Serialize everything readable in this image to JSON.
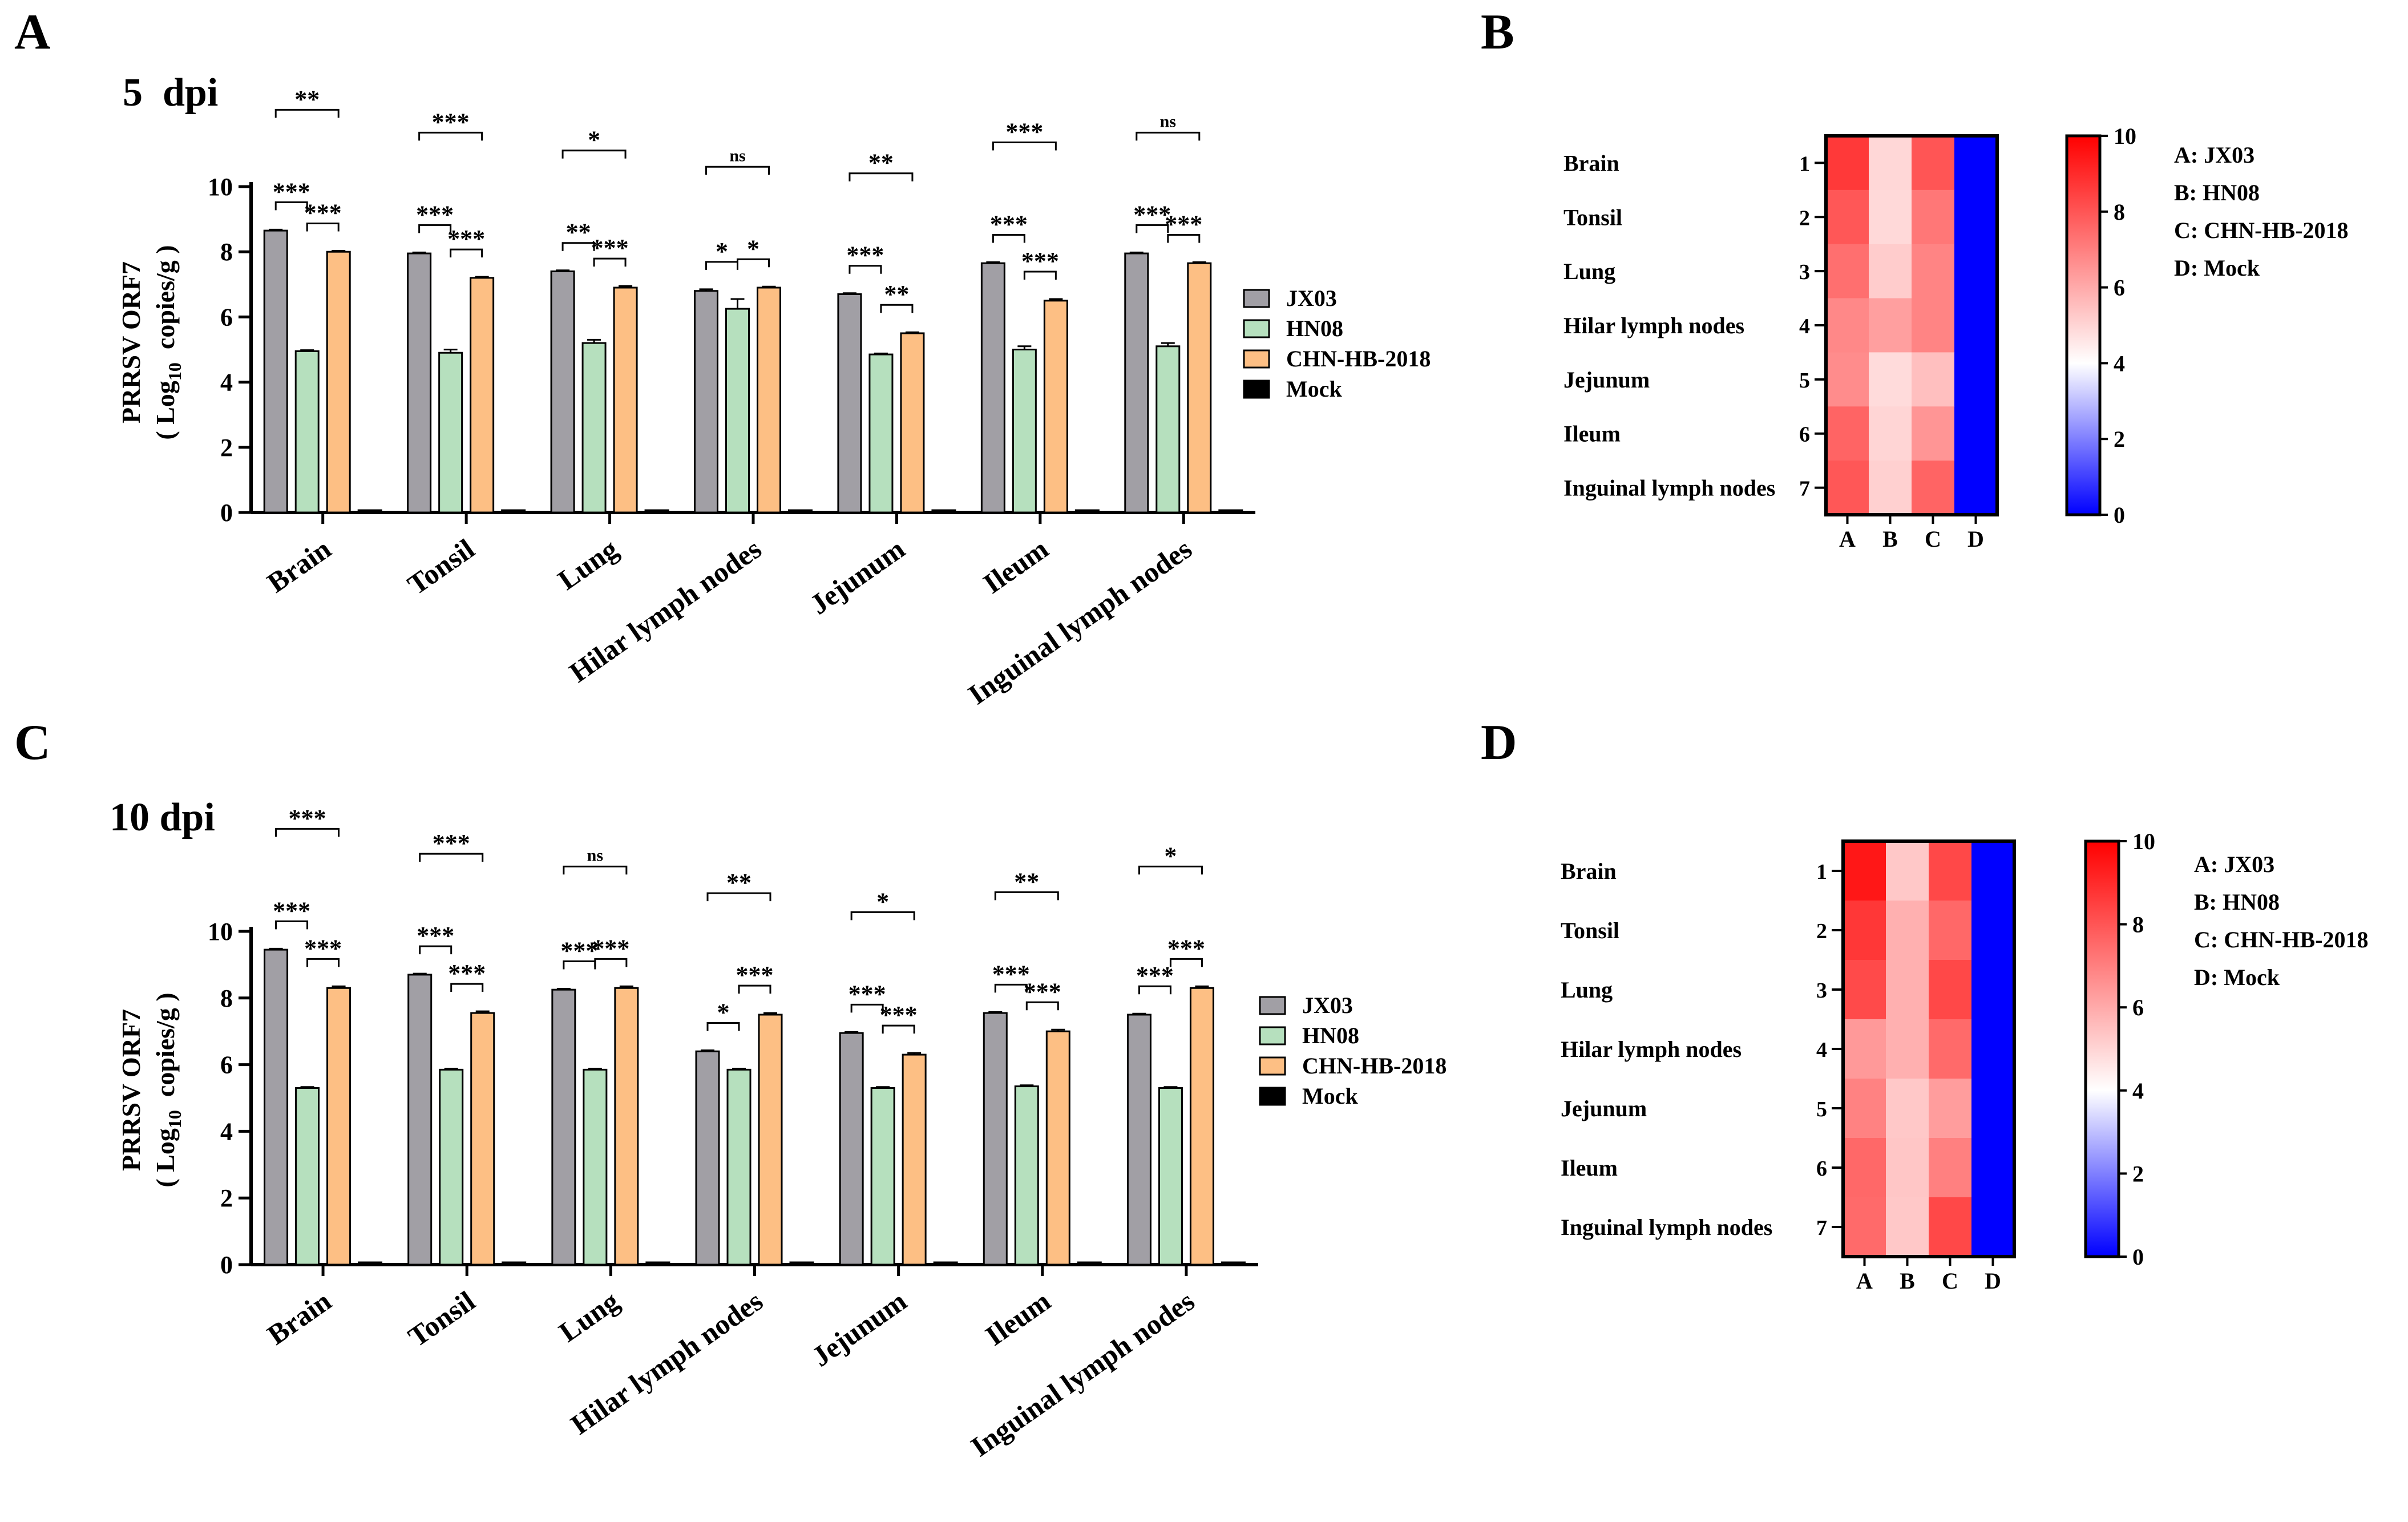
{
  "chart_data": [
    {
      "type": "bar",
      "panel_letter": "A",
      "title": "5  dpi",
      "ylabel_main": "PRRSV ORF7",
      "ylabel_pre": "( Log",
      "ylabel_sub": "10",
      "ylabel_post": "  copies/g )",
      "ylim": [
        0,
        10
      ],
      "yticks": [
        "0",
        "2",
        "4",
        "6",
        "8",
        "10"
      ],
      "categories": [
        "Brain",
        "Tonsil",
        "Lung",
        "Hilar lymph nodes",
        "Jejunum",
        "Ileum",
        "Inguinal lymph nodes"
      ],
      "series": [
        {
          "name": "JX03",
          "values": [
            8.65,
            7.95,
            7.4,
            6.8,
            6.7,
            7.65,
            7.95
          ],
          "errors": [
            0.03,
            0.03,
            0.03,
            0.05,
            0.03,
            0.03,
            0.03
          ]
        },
        {
          "name": "HN08",
          "values": [
            4.95,
            4.9,
            5.2,
            6.25,
            4.85,
            5.0,
            5.1
          ],
          "errors": [
            0.03,
            0.1,
            0.1,
            0.3,
            0.03,
            0.1,
            0.1
          ]
        },
        {
          "name": "CHN-HB-2018",
          "values": [
            8.0,
            7.2,
            6.9,
            6.9,
            5.5,
            6.5,
            7.65
          ],
          "errors": [
            0.03,
            0.03,
            0.05,
            0.03,
            0.03,
            0.05,
            0.03
          ]
        },
        {
          "name": "Mock",
          "values": [
            0,
            0,
            0,
            0,
            0,
            0,
            0
          ],
          "errors": [
            0,
            0,
            0,
            0,
            0,
            0,
            0
          ]
        }
      ],
      "significance": [
        {
          "top": "**",
          "left": "***",
          "right": "***"
        },
        {
          "top": "***",
          "left": "***",
          "right": "***"
        },
        {
          "top": "*",
          "left": "**",
          "right": "***"
        },
        {
          "top": "ns",
          "left": "*",
          "right": "*"
        },
        {
          "top": "**",
          "left": "***",
          "right": "**"
        },
        {
          "top": "***",
          "left": "***",
          "right": "***"
        },
        {
          "top": "ns",
          "left": "***",
          "right": "***"
        }
      ],
      "legend": [
        "JX03",
        "HN08",
        "CHN-HB-2018",
        "Mock"
      ]
    },
    {
      "type": "heatmap",
      "panel_letter": "B",
      "row_labels": [
        "Brain",
        "Tonsil",
        "Lung",
        "Hilar lymph nodes",
        "Jejunum",
        "Ileum",
        "Inguinal lymph nodes"
      ],
      "row_numbers": [
        "1",
        "2",
        "3",
        "4",
        "5",
        "6",
        "7"
      ],
      "column_labels": [
        "A",
        "B",
        "C",
        "D"
      ],
      "values": [
        [
          8.65,
          4.95,
          8.0,
          0
        ],
        [
          7.95,
          4.9,
          7.2,
          0
        ],
        [
          7.4,
          5.2,
          6.9,
          0
        ],
        [
          6.8,
          6.25,
          6.9,
          0
        ],
        [
          6.7,
          4.85,
          5.5,
          0
        ],
        [
          7.65,
          5.0,
          6.5,
          0
        ],
        [
          7.95,
          5.1,
          7.65,
          0
        ]
      ],
      "colorbar_range": [
        0,
        10
      ],
      "colorbar_ticks": [
        "0",
        "2",
        "4",
        "6",
        "8",
        "10"
      ],
      "key": [
        "A: JX03",
        "B: HN08",
        "C: CHN-HB-2018",
        "D: Mock"
      ]
    },
    {
      "type": "bar",
      "panel_letter": "C",
      "title": "10 dpi",
      "ylabel_main": "PRRSV ORF7",
      "ylabel_pre": "( Log",
      "ylabel_sub": "10",
      "ylabel_post": "  copies/g )",
      "ylim": [
        0,
        10
      ],
      "yticks": [
        "0",
        "2",
        "4",
        "6",
        "8",
        "10"
      ],
      "categories": [
        "Brain",
        "Tonsil",
        "Lung",
        "Hilar lymph nodes",
        "Jejunum",
        "Ileum",
        "Inguinal lymph nodes"
      ],
      "series": [
        {
          "name": "JX03",
          "values": [
            9.45,
            8.7,
            8.25,
            6.4,
            6.95,
            7.55,
            7.5
          ],
          "errors": [
            0.03,
            0.03,
            0.03,
            0.03,
            0.03,
            0.03,
            0.03
          ]
        },
        {
          "name": "HN08",
          "values": [
            5.3,
            5.85,
            5.85,
            5.85,
            5.3,
            5.35,
            5.3
          ],
          "errors": [
            0.03,
            0.03,
            0.03,
            0.03,
            0.03,
            0.03,
            0.03
          ]
        },
        {
          "name": "CHN-HB-2018",
          "values": [
            8.3,
            7.55,
            8.3,
            7.5,
            6.3,
            7.0,
            8.3
          ],
          "errors": [
            0.05,
            0.05,
            0.05,
            0.05,
            0.05,
            0.05,
            0.05
          ]
        },
        {
          "name": "Mock",
          "values": [
            0,
            0,
            0,
            0,
            0,
            0,
            0
          ],
          "errors": [
            0,
            0,
            0,
            0,
            0,
            0,
            0
          ]
        }
      ],
      "significance": [
        {
          "top": "***",
          "left": "***",
          "right": "***"
        },
        {
          "top": "***",
          "left": "***",
          "right": "***"
        },
        {
          "top": "ns",
          "left": "***",
          "right": "***"
        },
        {
          "top": "**",
          "left": "*",
          "right": "***"
        },
        {
          "top": "*",
          "left": "***",
          "right": "***"
        },
        {
          "top": "**",
          "left": "***",
          "right": "***"
        },
        {
          "top": "*",
          "left": "***",
          "right": "***"
        }
      ],
      "legend": [
        "JX03",
        "HN08",
        "CHN-HB-2018",
        "Mock"
      ]
    },
    {
      "type": "heatmap",
      "panel_letter": "D",
      "row_labels": [
        "Brain",
        "Tonsil",
        "Lung",
        "Hilar lymph nodes",
        "Jejunum",
        "Ileum",
        "Inguinal lymph nodes"
      ],
      "row_numbers": [
        "1",
        "2",
        "3",
        "4",
        "5",
        "6",
        "7"
      ],
      "column_labels": [
        "A",
        "B",
        "C",
        "D"
      ],
      "values": [
        [
          9.45,
          5.3,
          8.3,
          0
        ],
        [
          8.7,
          5.85,
          7.55,
          0
        ],
        [
          8.25,
          5.85,
          8.3,
          0
        ],
        [
          6.4,
          5.85,
          7.5,
          0
        ],
        [
          6.95,
          5.3,
          6.3,
          0
        ],
        [
          7.55,
          5.35,
          7.0,
          0
        ],
        [
          7.5,
          5.3,
          8.3,
          0
        ]
      ],
      "colorbar_range": [
        0,
        10
      ],
      "colorbar_ticks": [
        "0",
        "2",
        "4",
        "6",
        "8",
        "10"
      ],
      "key": [
        "A: JX03",
        "B: HN08",
        "C: CHN-HB-2018",
        "D: Mock"
      ]
    }
  ],
  "colors": {
    "JX03": "#a19fa5",
    "HN08": "#b6e0be",
    "CHN-HB-2018": "#fdbf84",
    "Mock": "#000000",
    "heat_low": "#0000ff",
    "heat_mid": "#ffffff",
    "heat_high": "#ff0000"
  }
}
